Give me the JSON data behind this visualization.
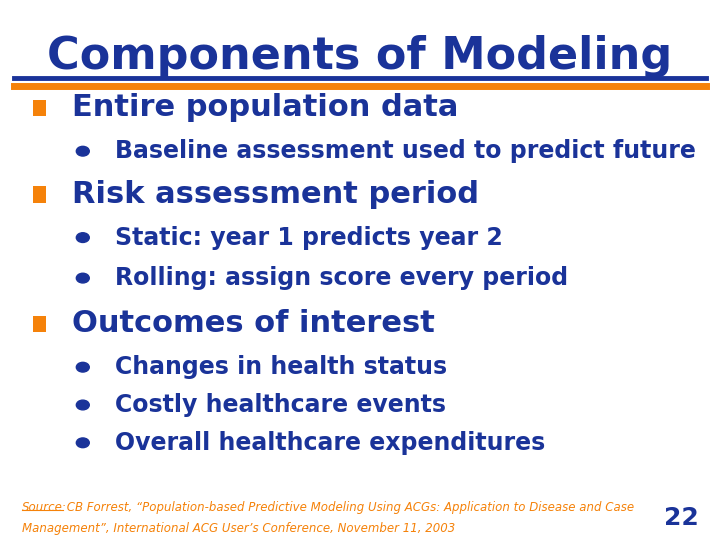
{
  "title": "Components of Modeling",
  "title_color": "#1a3399",
  "title_fontsize": 32,
  "bg_color": "#ffffff",
  "separator_color_top": "#1a3399",
  "separator_color_bottom": "#f5820a",
  "orange": "#f5820a",
  "dark_blue": "#1a3399",
  "items": [
    {
      "level": 0,
      "marker": "square",
      "color": "#f5820a",
      "text": "Entire population data",
      "fontsize": 22,
      "bold": true
    },
    {
      "level": 1,
      "marker": "circle",
      "color": "#1a3399",
      "text": "Baseline assessment used to predict future",
      "fontsize": 17,
      "bold": true
    },
    {
      "level": 0,
      "marker": "square",
      "color": "#f5820a",
      "text": "Risk assessment period",
      "fontsize": 22,
      "bold": true
    },
    {
      "level": 1,
      "marker": "circle",
      "color": "#1a3399",
      "text": "Static: year 1 predicts year 2",
      "fontsize": 17,
      "bold": true
    },
    {
      "level": 1,
      "marker": "circle",
      "color": "#1a3399",
      "text": "Rolling: assign score every period",
      "fontsize": 17,
      "bold": true
    },
    {
      "level": 0,
      "marker": "square",
      "color": "#f5820a",
      "text": "Outcomes of interest",
      "fontsize": 22,
      "bold": true
    },
    {
      "level": 1,
      "marker": "circle",
      "color": "#1a3399",
      "text": "Changes in health status",
      "fontsize": 17,
      "bold": true
    },
    {
      "level": 1,
      "marker": "circle",
      "color": "#1a3399",
      "text": "Costly healthcare events",
      "fontsize": 17,
      "bold": true
    },
    {
      "level": 1,
      "marker": "circle",
      "color": "#1a3399",
      "text": "Overall healthcare expenditures",
      "fontsize": 17,
      "bold": true
    }
  ],
  "source_label": "Source:",
  "source_rest_line1": " CB Forrest, “Population-based Predictive Modeling Using ACGs: Application to Disease and Case",
  "source_rest_line2": "Management”, International ACG User’s Conference, November 11, 2003",
  "source_color": "#f5820a",
  "page_number": "22",
  "page_color": "#1a3399"
}
